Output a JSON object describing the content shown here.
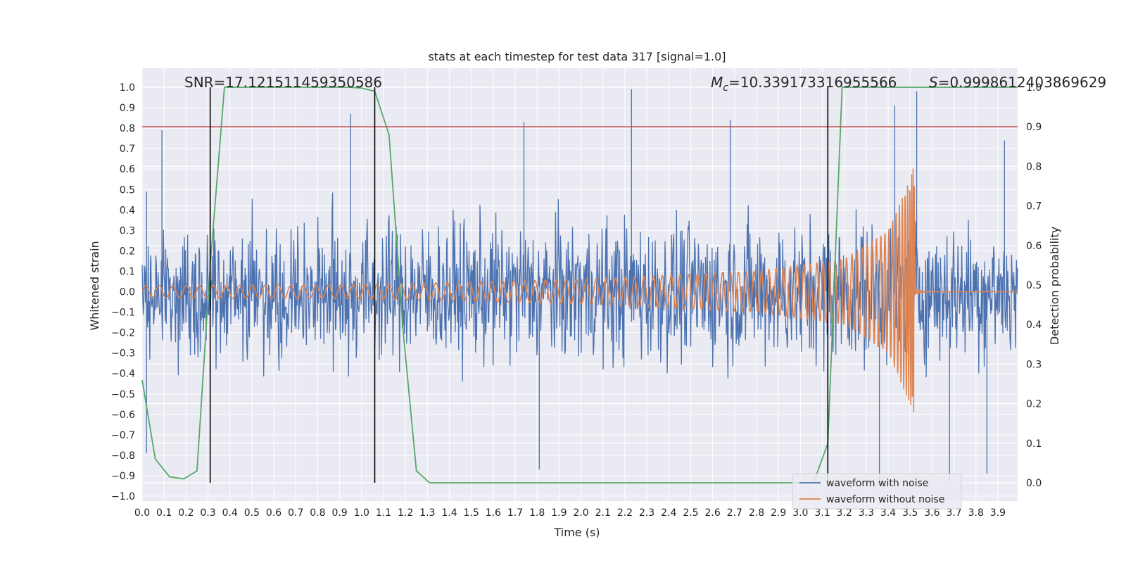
{
  "chart_data": {
    "type": "line",
    "title": "stats at each timestep for test data 317 [signal=1.0]",
    "xlabel": "Time (s)",
    "ylabel": "Whitened strain",
    "y2label": "Detection probability",
    "xlim": [
      0.0,
      3.99
    ],
    "ylim": [
      -1.05,
      1.05
    ],
    "y2lim": [
      -0.05,
      1.0
    ],
    "x_ticks": [
      "0.0",
      "0.1",
      "0.2",
      "0.3",
      "0.4",
      "0.5",
      "0.6",
      "0.7",
      "0.8",
      "0.9",
      "1.0",
      "1.1",
      "1.2",
      "1.3",
      "1.4",
      "1.5",
      "1.6",
      "1.7",
      "1.8",
      "1.9",
      "2.0",
      "2.1",
      "2.2",
      "2.3",
      "2.4",
      "2.5",
      "2.6",
      "2.7",
      "2.8",
      "2.9",
      "3.0",
      "3.1",
      "3.2",
      "3.3",
      "3.4",
      "3.5",
      "3.6",
      "3.7",
      "3.8",
      "3.9"
    ],
    "y_ticks": [
      "1.0",
      "0.9",
      "0.8",
      "0.7",
      "0.6",
      "0.5",
      "0.4",
      "0.3",
      "0.2",
      "0.1",
      "0.0",
      "−0.1",
      "−0.2",
      "−0.3",
      "−0.4",
      "−0.5",
      "−0.6",
      "−0.7",
      "−0.8",
      "−0.9",
      "−1.0"
    ],
    "y2_ticks": [
      "1.0",
      "0.9",
      "0.8",
      "0.7",
      "0.6",
      "0.5",
      "0.4",
      "0.3",
      "0.2",
      "0.1",
      "0.0"
    ],
    "grid": true,
    "legend_position": "lower-right",
    "annotations": {
      "snr": "SNR=17.121511459350586",
      "mc_symbol": "M",
      "mc_subscript": "c",
      "mc_value": "=10.339173316955566",
      "s_symbol": "S",
      "s_value": "=0.9998612403869629"
    },
    "series": [
      {
        "name": "waveform with noise",
        "color": "#4c72b0",
        "description_values": "noise, amplitude mostly within ±0.5, peaks near 0.98 and −0.93",
        "peaks": [
          {
            "x": 0.02,
            "y": 0.49
          },
          {
            "x": 0.09,
            "y": 0.79
          },
          {
            "x": 0.95,
            "y": 0.87
          },
          {
            "x": 1.74,
            "y": 0.83
          },
          {
            "x": 2.23,
            "y": 0.99
          },
          {
            "x": 2.68,
            "y": 0.84
          },
          {
            "x": 3.43,
            "y": 0.91
          },
          {
            "x": 3.53,
            "y": 0.98
          },
          {
            "x": 3.93,
            "y": 0.74
          },
          {
            "x": 1.81,
            "y": -0.87
          },
          {
            "x": 3.36,
            "y": -0.93
          },
          {
            "x": 3.68,
            "y": -0.93
          },
          {
            "x": 3.85,
            "y": -0.89
          },
          {
            "x": 0.02,
            "y": -0.79
          }
        ]
      },
      {
        "name": "waveform without noise",
        "color": "#dd8452",
        "description_values": "chirp signal, amplitude ~0.03 growing to ~0.67 at merger t≈3.52 s, then ringdown to 0",
        "envelope": [
          {
            "x": 0.0,
            "amp": 0.03
          },
          {
            "x": 1.0,
            "amp": 0.035
          },
          {
            "x": 2.0,
            "amp": 0.06
          },
          {
            "x": 2.8,
            "amp": 0.1
          },
          {
            "x": 3.2,
            "amp": 0.16
          },
          {
            "x": 3.4,
            "amp": 0.3
          },
          {
            "x": 3.5,
            "amp": 0.55
          },
          {
            "x": 3.52,
            "amp": 0.67
          }
        ],
        "merger_time": 3.52
      },
      {
        "name": "detection probability",
        "color": "#55a868",
        "axis": "right",
        "x": [
          0.0,
          0.06,
          0.125,
          0.19,
          0.25,
          0.31,
          0.375,
          0.44,
          0.5,
          0.56,
          0.625,
          0.69,
          0.75,
          0.81,
          0.875,
          0.94,
          1.0,
          1.06,
          1.125,
          1.19,
          1.25,
          1.31,
          1.375,
          1.44,
          1.5,
          2.0,
          2.5,
          3.0,
          3.06,
          3.125,
          3.19,
          3.25,
          3.5,
          3.99
        ],
        "y": [
          0.26,
          0.06,
          0.015,
          0.01,
          0.03,
          0.55,
          1.0,
          1.0,
          1.0,
          1.0,
          1.0,
          1.0,
          1.0,
          1.0,
          1.0,
          1.0,
          0.998,
          0.99,
          0.88,
          0.38,
          0.03,
          0.0,
          0.0,
          0.0,
          0.0,
          0.0,
          0.0,
          0.0,
          0.0,
          0.1,
          1.0,
          1.0,
          1.0,
          1.0
        ]
      }
    ],
    "threshold_line": {
      "y2": 0.9,
      "color": "#c44e52"
    },
    "event_lines": [
      0.31,
      1.06,
      3.125
    ]
  }
}
